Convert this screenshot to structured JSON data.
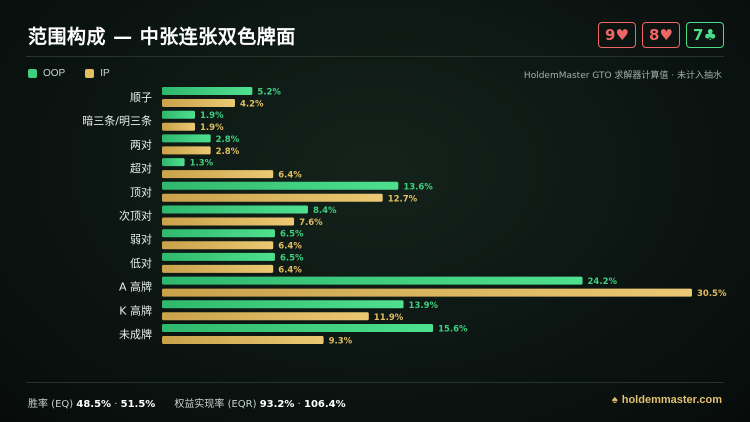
{
  "header": {
    "title": "范围构成 — 中张连张双色牌面"
  },
  "board": [
    {
      "rank": "9",
      "suit": "♥",
      "color": "#f06565"
    },
    {
      "rank": "8",
      "suit": "♥",
      "color": "#f06565"
    },
    {
      "rank": "7",
      "suit": "♣",
      "color": "#4fdc8a"
    }
  ],
  "legend": {
    "oop": "OOP",
    "ip": "IP"
  },
  "source": "HoldemMaster GTO 求解器计算值 · 未计入抽水",
  "colors": {
    "oop": "#3ecf7f",
    "ip": "#e2bd63"
  },
  "chart_data": {
    "type": "bar",
    "orientation": "horizontal",
    "categories": [
      "顺子",
      "暗三条/明三条",
      "两对",
      "超对",
      "顶对",
      "次顶对",
      "弱对",
      "低对",
      "A 高牌",
      "K 高牌",
      "未成牌"
    ],
    "series": [
      {
        "name": "OOP",
        "values": [
          5.2,
          1.9,
          2.8,
          1.3,
          13.6,
          8.4,
          6.5,
          6.5,
          24.2,
          13.9,
          15.6
        ]
      },
      {
        "name": "IP",
        "values": [
          4.2,
          1.9,
          2.8,
          6.4,
          12.7,
          7.6,
          6.4,
          6.4,
          30.5,
          11.9,
          9.3
        ]
      }
    ],
    "xlim": [
      0,
      30.5
    ],
    "unit": "%"
  },
  "footer": {
    "eq_label": "胜率 (EQ)",
    "eq_oop": "48.5%",
    "eq_sep": "·",
    "eq_ip": "51.5%",
    "eqr_label": "权益实现率 (EQR)",
    "eqr_oop": "93.2%",
    "eqr_sep": "·",
    "eqr_ip": "106.4%"
  },
  "brand": {
    "name": "holdemmaster.com",
    "icon": "spade-icon"
  }
}
